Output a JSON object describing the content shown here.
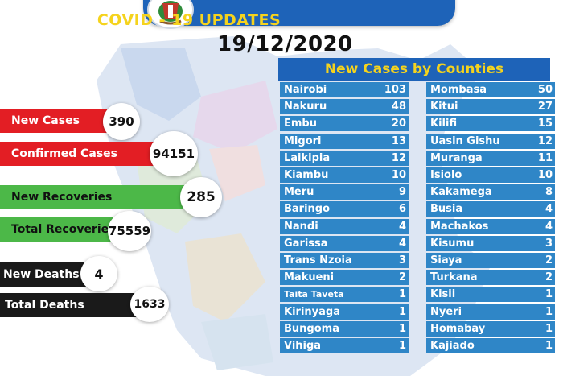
{
  "header": {
    "title": "COVID - 19 UPDATES",
    "date": "19/12/2020"
  },
  "stats": {
    "new_cases": {
      "label": "New Cases",
      "value": "390",
      "color": "#e31e24"
    },
    "confirmed_cases": {
      "label": "Confirmed Cases",
      "value": "94151",
      "color": "#e31e24"
    },
    "new_recoveries": {
      "label": "New Recoveries",
      "value": "285",
      "color": "#4cb848"
    },
    "total_recoveries": {
      "label": "Total Recoveries",
      "value": "75559",
      "color": "#4cb848"
    },
    "new_deaths": {
      "label": "New Deaths",
      "value": "4",
      "color": "#1a1a1a"
    },
    "total_deaths": {
      "label": "Total Deaths",
      "value": "1633",
      "color": "#1a1a1a"
    }
  },
  "counties": {
    "title": "New Cases by Counties",
    "left": [
      {
        "name": "Nairobi",
        "count": "103"
      },
      {
        "name": "Nakuru",
        "count": "48"
      },
      {
        "name": "Embu",
        "count": "20"
      },
      {
        "name": "Migori",
        "count": "13"
      },
      {
        "name": "Laikipia",
        "count": "12"
      },
      {
        "name": "Kiambu",
        "count": "10"
      },
      {
        "name": "Meru",
        "count": "9"
      },
      {
        "name": "Baringo",
        "count": "6"
      },
      {
        "name": "Nandi",
        "count": "4"
      },
      {
        "name": "Garissa",
        "count": "4"
      },
      {
        "name": "Trans Nzoia",
        "count": "3"
      },
      {
        "name": "Makueni",
        "count": "2"
      },
      {
        "name": "Taita Taveta",
        "count": "1"
      },
      {
        "name": "Kirinyaga",
        "count": "1"
      },
      {
        "name": "Bungoma",
        "count": "1"
      },
      {
        "name": "Vihiga",
        "count": "1"
      }
    ],
    "right": [
      {
        "name": "Mombasa",
        "count": "50"
      },
      {
        "name": "Kitui",
        "count": "27"
      },
      {
        "name": "Kilifi",
        "count": "15"
      },
      {
        "name": "Uasin Gishu",
        "count": "12"
      },
      {
        "name": "Muranga",
        "count": "11"
      },
      {
        "name": "Isiolo",
        "count": "10"
      },
      {
        "name": "Kakamega",
        "count": "8"
      },
      {
        "name": "Busia",
        "count": "4"
      },
      {
        "name": "Machakos",
        "count": "4"
      },
      {
        "name": "Kisumu",
        "count": "3"
      },
      {
        "name": "Siaya",
        "count": "2"
      },
      {
        "name": "Turkana",
        "count": "2"
      },
      {
        "name": "Kisii",
        "count": "1"
      },
      {
        "name": "Nyeri",
        "count": "1"
      },
      {
        "name": "Homabay",
        "count": "1"
      },
      {
        "name": "Kajiado",
        "count": "1"
      }
    ]
  }
}
